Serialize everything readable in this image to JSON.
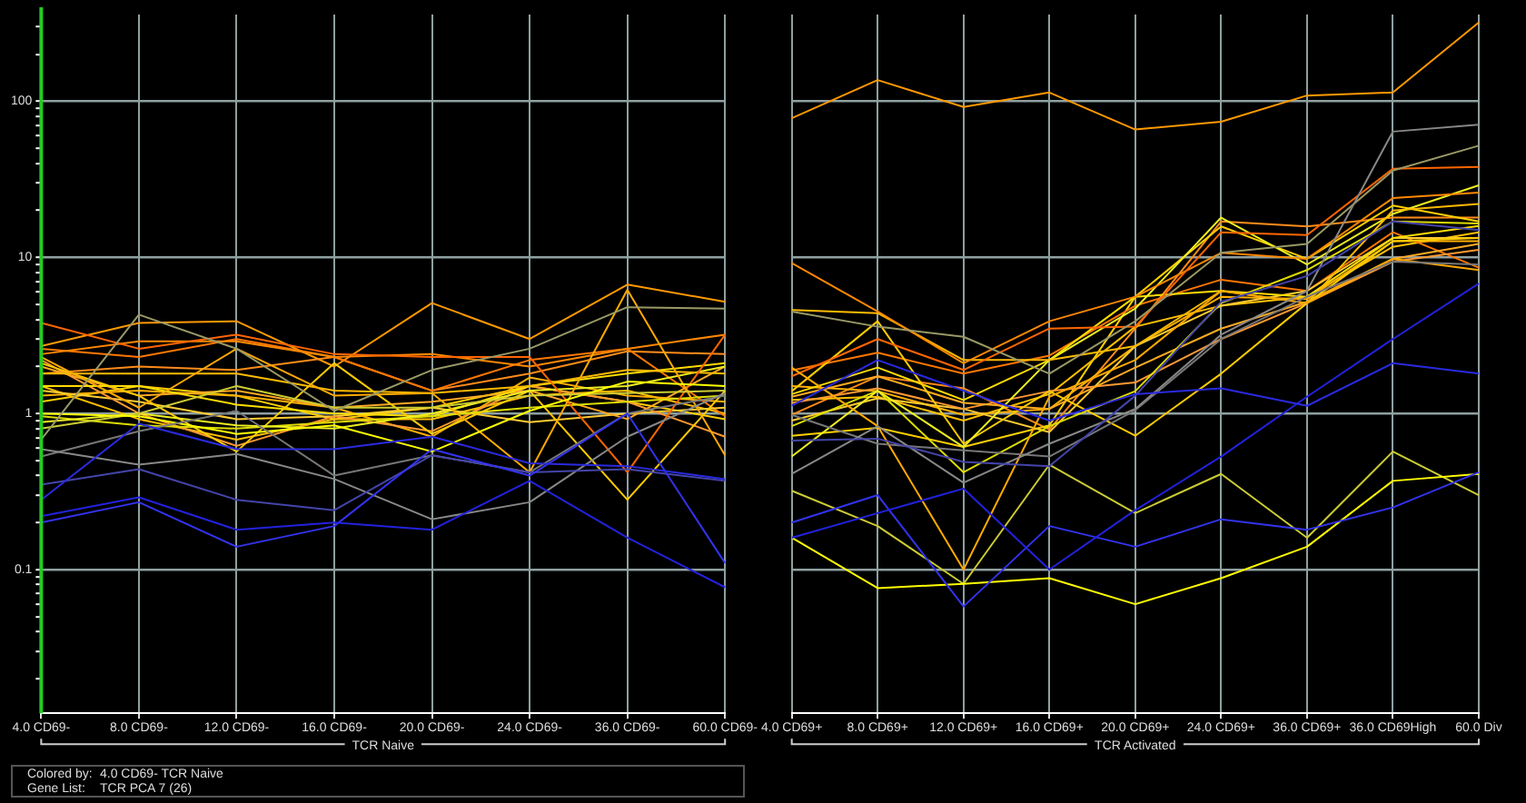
{
  "chart_data": [
    {
      "type": "line",
      "xlabel": "TCR Naive",
      "log": true,
      "grid": true,
      "marker": "none",
      "categories": [
        "4.0 CD69-",
        "8.0 CD69-",
        "12.0 CD69-",
        "16.0 CD69-",
        "20.0 CD69-",
        "24.0 CD69-",
        "36.0 CD69-",
        "60.0 CD69-"
      ],
      "ylim": [
        0.012,
        360
      ],
      "yticks": [
        {
          "value": 0.02,
          "label": null
        },
        {
          "value": 0.03,
          "label": null
        },
        {
          "value": 0.04,
          "label": null
        },
        {
          "value": 0.05,
          "label": null
        },
        {
          "value": 0.06,
          "label": null
        },
        {
          "value": 0.07,
          "label": null
        },
        {
          "value": 0.08,
          "label": null
        },
        {
          "value": 0.09,
          "label": null
        },
        0.1,
        {
          "value": 0.2,
          "label": null
        },
        {
          "value": 0.3,
          "label": null
        },
        {
          "value": 0.4,
          "label": null
        },
        {
          "value": 0.5,
          "label": null
        },
        {
          "value": 0.6,
          "label": null
        },
        {
          "value": 0.7,
          "label": null
        },
        {
          "value": 0.8,
          "label": null
        },
        {
          "value": 0.9,
          "label": null
        },
        1,
        {
          "value": 2,
          "label": null
        },
        {
          "value": 3,
          "label": null
        },
        {
          "value": 4,
          "label": null
        },
        {
          "value": 5,
          "label": null
        },
        {
          "value": 6,
          "label": null
        },
        {
          "value": 7,
          "label": null
        },
        {
          "value": 8,
          "label": null
        },
        {
          "value": 9,
          "label": null
        },
        10,
        {
          "value": 20,
          "label": null
        },
        {
          "value": 30,
          "label": null
        },
        {
          "value": 40,
          "label": null
        },
        {
          "value": 50,
          "label": null
        },
        {
          "value": 60,
          "label": null
        },
        {
          "value": 70,
          "label": null
        },
        {
          "value": 80,
          "label": null
        },
        {
          "value": 90,
          "label": null
        },
        100,
        {
          "value": 200,
          "label": null
        },
        {
          "value": 300,
          "label": null
        }
      ],
      "ref_lines": [
        {
          "axis": "x",
          "value": "4.0 CD69-",
          "color": "#22cc22"
        }
      ],
      "annotations": [
        "Colored by:",
        "4.0 CD69- TCR Naive",
        "Gene List:",
        "TCR PCA 7 (26)"
      ],
      "series": [
        {
          "color": "#2a2ae0",
          "values": [
            0.28,
            0.86,
            0.59,
            0.59,
            0.71,
            0.48,
            0.46,
            0.38
          ]
        },
        {
          "color": "#2222dd",
          "values": [
            0.22,
            0.29,
            0.18,
            0.2,
            0.18,
            0.37,
            0.16,
            0.077
          ]
        },
        {
          "color": "#3333ee",
          "values": [
            0.2,
            0.27,
            0.14,
            0.19,
            0.59,
            0.4,
            1.0,
            0.11
          ]
        },
        {
          "color": "#4444aa",
          "values": [
            0.35,
            0.44,
            0.28,
            0.24,
            0.54,
            0.42,
            0.44,
            0.37
          ]
        },
        {
          "color": "#888888",
          "values": [
            0.59,
            0.47,
            0.55,
            0.38,
            0.21,
            0.27,
            0.71,
            1.35
          ]
        },
        {
          "color": "#777777",
          "values": [
            0.53,
            0.77,
            1.04,
            0.4,
            0.54,
            0.42,
            1.0,
            1.3
          ]
        },
        {
          "color": "#999966",
          "values": [
            0.68,
            4.3,
            2.6,
            1.04,
            1.9,
            2.6,
            4.8,
            4.7
          ]
        },
        {
          "color": "#ffff00",
          "values": [
            1.0,
            0.96,
            0.74,
            0.84,
            0.57,
            1.04,
            1.6,
            1.5
          ]
        },
        {
          "color": "#cccc33",
          "values": [
            0.8,
            1.0,
            1.5,
            1.09,
            1.09,
            1.3,
            1.35,
            1.4
          ]
        },
        {
          "color": "#ffaa00",
          "values": [
            2.3,
            1.09,
            2.6,
            1.3,
            1.35,
            0.42,
            6.2,
            0.54
          ]
        },
        {
          "color": "#ff6600",
          "values": [
            3.8,
            2.6,
            3.2,
            2.4,
            2.3,
            2.3,
            0.42,
            3.2
          ]
        },
        {
          "color": "#ff8800",
          "values": [
            2.4,
            2.9,
            2.9,
            2.3,
            2.4,
            2.0,
            2.6,
            3.2
          ]
        },
        {
          "color": "#ffbb00",
          "values": [
            1.8,
            1.8,
            1.8,
            1.4,
            1.35,
            1.5,
            1.9,
            1.8
          ]
        },
        {
          "color": "#eeee22",
          "values": [
            0.88,
            1.0,
            0.84,
            0.8,
            1.0,
            1.4,
            1.5,
            2.0
          ]
        },
        {
          "color": "#ffcc00",
          "values": [
            2.1,
            1.3,
            0.57,
            2.1,
            0.74,
            1.4,
            0.28,
            1.4
          ]
        },
        {
          "color": "#dddd00",
          "values": [
            0.96,
            0.84,
            0.8,
            0.88,
            0.96,
            1.09,
            1.19,
            1.3
          ]
        },
        {
          "color": "#ffdd00",
          "values": [
            1.5,
            1.5,
            1.14,
            1.0,
            0.96,
            1.5,
            1.8,
            2.1
          ]
        },
        {
          "color": "#ffaa22",
          "values": [
            2.0,
            1.3,
            1.4,
            1.09,
            1.19,
            1.4,
            0.92,
            2.0
          ]
        },
        {
          "color": "#ff9933",
          "values": [
            2.2,
            1.0,
            0.62,
            0.96,
            0.77,
            1.5,
            1.19,
            0.71
          ]
        },
        {
          "color": "#ffcc33",
          "values": [
            1.4,
            1.19,
            0.92,
            0.96,
            1.09,
            0.88,
            1.0,
            1.09
          ]
        },
        {
          "color": "#ff7700",
          "values": [
            2.6,
            2.3,
            3.0,
            2.3,
            1.4,
            2.2,
            2.6,
            0.96
          ]
        },
        {
          "color": "#ffb000",
          "values": [
            1.3,
            1.4,
            1.3,
            1.09,
            0.71,
            1.7,
            1.3,
            1.19
          ]
        },
        {
          "color": "#ffc000",
          "values": [
            1.5,
            0.92,
            0.68,
            0.92,
            0.92,
            1.3,
            1.4,
            1.0
          ]
        },
        {
          "color": "#ffd000",
          "values": [
            1.19,
            1.5,
            1.3,
            0.92,
            1.09,
            1.5,
            1.19,
            0.92
          ]
        },
        {
          "color": "#ff8c1a",
          "values": [
            1.8,
            2.0,
            1.9,
            2.3,
            1.4,
            1.8,
            2.5,
            2.4
          ]
        },
        {
          "color": "#ff9900",
          "values": [
            2.7,
            3.8,
            3.9,
            2.0,
            5.1,
            3.0,
            6.7,
            5.2
          ]
        }
      ]
    },
    {
      "type": "line",
      "xlabel": "TCR Activated",
      "log": true,
      "grid": true,
      "marker": "none",
      "tick_labels": "x",
      "categories": [
        "4.0 CD69+",
        "8.0 CD69+",
        "12.0 CD69+",
        "16.0 CD69+",
        "20.0 CD69+",
        "24.0 CD69+",
        "36.0 CD69+",
        "36.0 CD69High",
        "60.0 Div"
      ],
      "ylim": [
        0.012,
        360
      ],
      "yticks": [
        0.1,
        1,
        10,
        100
      ],
      "series": [
        {
          "color": "#2a2ae0",
          "values": [
            1.12,
            2.2,
            1.4,
            0.9,
            1.33,
            1.45,
            1.12,
            2.1,
            1.8
          ]
        },
        {
          "color": "#2222dd",
          "values": [
            0.16,
            0.23,
            0.33,
            0.1,
            0.24,
            0.53,
            1.28,
            3.0,
            6.8
          ]
        },
        {
          "color": "#3333ee",
          "values": [
            0.2,
            0.3,
            0.058,
            0.19,
            0.14,
            0.21,
            0.18,
            0.25,
            0.42
          ]
        },
        {
          "color": "#4444aa",
          "values": [
            0.67,
            0.69,
            0.49,
            0.46,
            1.3,
            5.2,
            7.6,
            17,
            15
          ]
        },
        {
          "color": "#888888",
          "values": [
            0.41,
            0.83,
            0.36,
            0.64,
            1.07,
            3.2,
            6.1,
            64,
            71
          ]
        },
        {
          "color": "#777777",
          "values": [
            0.98,
            0.64,
            0.58,
            0.53,
            1.05,
            3.0,
            5.6,
            9.4,
            9.0
          ]
        },
        {
          "color": "#999966",
          "values": [
            4.5,
            3.6,
            3.1,
            1.8,
            3.9,
            10.7,
            12.2,
            36,
            52
          ]
        },
        {
          "color": "#ffff00",
          "values": [
            0.16,
            0.076,
            0.081,
            0.088,
            0.06,
            0.088,
            0.14,
            0.37,
            0.41
          ]
        },
        {
          "color": "#cccc33",
          "values": [
            0.32,
            0.19,
            0.081,
            0.47,
            0.23,
            0.41,
            0.16,
            0.57,
            0.3
          ]
        },
        {
          "color": "#ffaa00",
          "values": [
            1.97,
            0.83,
            0.1,
            1.28,
            2.2,
            6.1,
            5.1,
            9.8,
            8.3
          ]
        },
        {
          "color": "#ff6600",
          "values": [
            1.73,
            3.0,
            1.9,
            3.5,
            3.6,
            14.5,
            13.9,
            37,
            38
          ]
        },
        {
          "color": "#ff8800",
          "values": [
            9.2,
            4.5,
            2.1,
            3.9,
            5.6,
            10.7,
            9.8,
            24,
            26
          ]
        },
        {
          "color": "#ffbb00",
          "values": [
            4.6,
            4.4,
            2.2,
            2.2,
            2.7,
            6.1,
            5.1,
            20,
            22
          ]
        },
        {
          "color": "#eeee22",
          "values": [
            0.53,
            1.4,
            0.61,
            2.2,
            4.7,
            18,
            9.0,
            19,
            29
          ]
        },
        {
          "color": "#ffcc00",
          "values": [
            1.39,
            3.9,
            0.64,
            1.39,
            0.72,
            1.8,
            5.1,
            12.7,
            13.3
          ]
        },
        {
          "color": "#dddd00",
          "values": [
            0.83,
            1.4,
            0.42,
            0.83,
            1.39,
            5.1,
            8.3,
            17,
            16.5
          ]
        },
        {
          "color": "#ffdd00",
          "values": [
            1.33,
            1.97,
            1.22,
            2.2,
            5.6,
            6.1,
            5.6,
            13.3,
            15.9
          ]
        },
        {
          "color": "#ffaa22",
          "values": [
            1.28,
            1.73,
            1.17,
            1.07,
            1.97,
            3.5,
            5.2,
            9.8,
            12.2
          ]
        },
        {
          "color": "#ff9933",
          "values": [
            1.17,
            1.45,
            1.07,
            1.39,
            1.58,
            3.0,
            5.1,
            9.4,
            11.2
          ]
        },
        {
          "color": "#ffcc33",
          "values": [
            0.9,
            1.25,
            1.07,
            0.76,
            2.7,
            4.9,
            6.1,
            13.3,
            13.3
          ]
        },
        {
          "color": "#ff7700",
          "values": [
            1.89,
            2.45,
            1.8,
            2.35,
            4.9,
            7.2,
            6.1,
            14.5,
            8.6
          ]
        },
        {
          "color": "#ffb000",
          "values": [
            1.5,
            1.39,
            0.98,
            1.07,
            2.7,
            5.6,
            5.4,
            12.7,
            12.7
          ]
        },
        {
          "color": "#ffc000",
          "values": [
            1.22,
            1.28,
            0.9,
            1.33,
            3.6,
            4.9,
            5.6,
            11.7,
            14.5
          ]
        },
        {
          "color": "#ffd000",
          "values": [
            0.72,
            0.81,
            0.61,
            0.84,
            5.6,
            15.8,
            9.8,
            21.5,
            17
          ]
        },
        {
          "color": "#ff8c1a",
          "values": [
            0.98,
            1.73,
            1.45,
            0.79,
            3.5,
            17,
            15.8,
            18,
            18
          ]
        },
        {
          "color": "#ff9900",
          "values": [
            78,
            137,
            92,
            114,
            66,
            74,
            109,
            114,
            320
          ]
        }
      ]
    }
  ]
}
